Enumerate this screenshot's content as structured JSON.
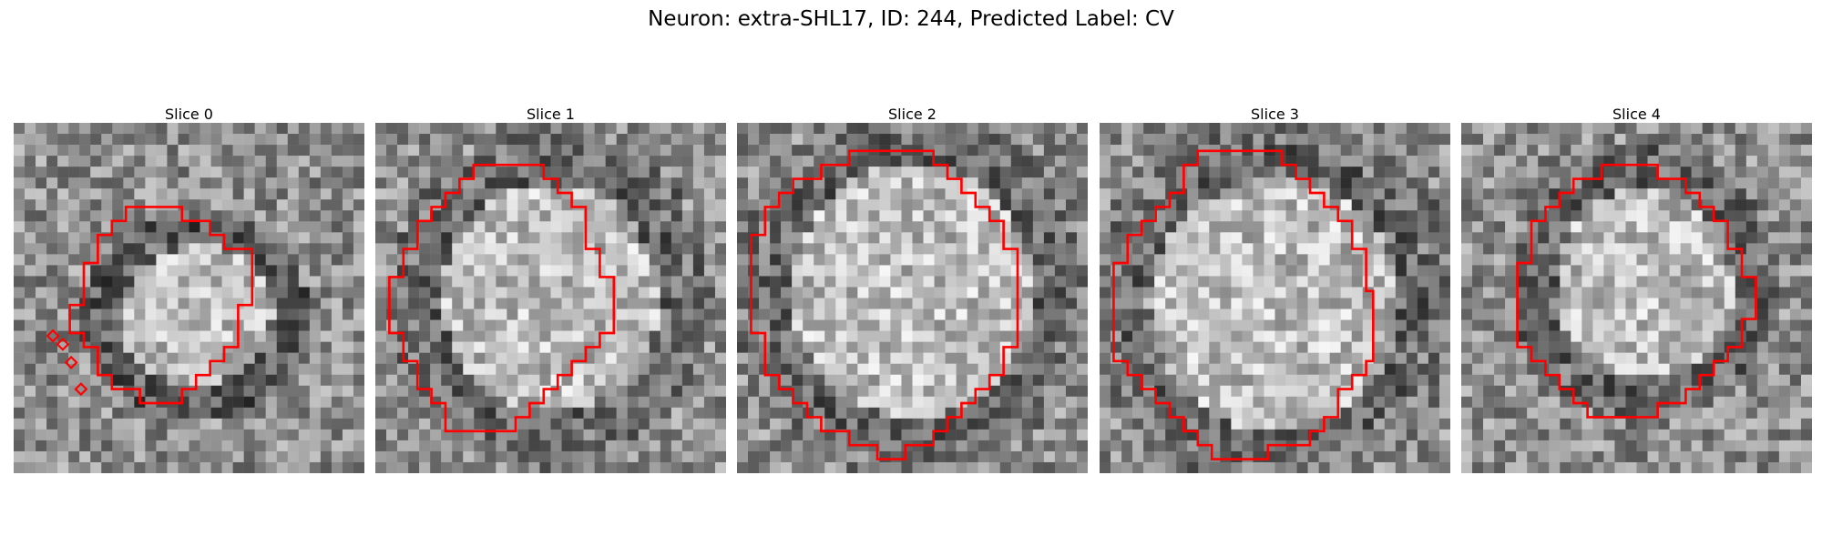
{
  "figure": {
    "title": "Neuron: extra-SHL17, ID: 244, Predicted Label: CV",
    "outline_color": "#ff0000",
    "colormap": "gray"
  },
  "panels": [
    {
      "title": "Slice 0",
      "seed": 17,
      "blob": [
        0.52,
        0.55,
        0.24,
        0.22
      ],
      "dark": 0.3,
      "outline": [
        [
          10,
          6
        ],
        [
          12,
          6
        ],
        [
          12,
          7
        ],
        [
          14,
          7
        ],
        [
          14,
          8
        ],
        [
          15,
          8
        ],
        [
          15,
          9
        ],
        [
          17,
          9
        ],
        [
          17,
          13
        ],
        [
          16,
          13
        ],
        [
          16,
          16
        ],
        [
          15,
          16
        ],
        [
          15,
          17
        ],
        [
          14,
          17
        ],
        [
          14,
          18
        ],
        [
          13,
          18
        ],
        [
          13,
          19
        ],
        [
          12,
          19
        ],
        [
          12,
          20
        ],
        [
          9,
          20
        ],
        [
          9,
          19
        ],
        [
          7,
          19
        ],
        [
          7,
          18
        ],
        [
          6,
          18
        ],
        [
          6,
          16
        ],
        [
          5,
          16
        ],
        [
          5,
          15
        ],
        [
          4,
          15
        ],
        [
          4,
          13
        ],
        [
          5,
          13
        ],
        [
          5,
          10
        ],
        [
          6,
          10
        ],
        [
          6,
          8
        ],
        [
          7,
          8
        ],
        [
          7,
          7
        ],
        [
          8,
          7
        ],
        [
          8,
          6
        ]
      ],
      "markers": [
        [
          2.8,
          15.2
        ],
        [
          3.5,
          15.8
        ],
        [
          4.1,
          17.1
        ],
        [
          4.8,
          19.0
        ]
      ]
    },
    {
      "title": "Slice 1",
      "seed": 53,
      "blob": [
        0.5,
        0.5,
        0.34,
        0.36
      ],
      "dark": 0.1,
      "outline": [
        [
          8,
          3
        ],
        [
          12,
          3
        ],
        [
          12,
          4
        ],
        [
          13,
          4
        ],
        [
          13,
          5
        ],
        [
          14,
          5
        ],
        [
          14,
          6
        ],
        [
          15,
          6
        ],
        [
          15,
          9
        ],
        [
          16,
          9
        ],
        [
          16,
          10
        ],
        [
          16,
          11
        ],
        [
          17,
          11
        ],
        [
          17,
          13
        ],
        [
          17,
          15
        ],
        [
          16,
          15
        ],
        [
          16,
          16
        ],
        [
          15,
          16
        ],
        [
          15,
          17
        ],
        [
          14,
          17
        ],
        [
          14,
          18
        ],
        [
          13,
          18
        ],
        [
          13,
          19
        ],
        [
          12,
          19
        ],
        [
          12,
          20
        ],
        [
          11,
          20
        ],
        [
          11,
          21
        ],
        [
          10,
          21
        ],
        [
          10,
          22
        ],
        [
          5,
          22
        ],
        [
          5,
          20
        ],
        [
          4,
          20
        ],
        [
          4,
          19
        ],
        [
          3,
          19
        ],
        [
          3,
          17
        ],
        [
          2,
          17
        ],
        [
          2,
          15
        ],
        [
          1,
          15
        ],
        [
          1,
          13
        ],
        [
          1,
          11
        ],
        [
          2,
          11
        ],
        [
          2,
          9
        ],
        [
          3,
          9
        ],
        [
          3,
          7
        ],
        [
          4,
          7
        ],
        [
          4,
          6
        ],
        [
          5,
          6
        ],
        [
          5,
          5
        ],
        [
          6,
          5
        ],
        [
          6,
          4
        ],
        [
          7,
          4
        ],
        [
          7,
          3
        ]
      ],
      "markers": []
    },
    {
      "title": "Slice 2",
      "seed": 91,
      "blob": [
        0.5,
        0.48,
        0.38,
        0.4
      ],
      "dark": 0.05,
      "outline": [
        [
          8,
          2
        ],
        [
          14,
          2
        ],
        [
          14,
          3
        ],
        [
          15,
          3
        ],
        [
          15,
          4
        ],
        [
          16,
          4
        ],
        [
          16,
          5
        ],
        [
          17,
          5
        ],
        [
          17,
          6
        ],
        [
          18,
          6
        ],
        [
          18,
          7
        ],
        [
          19,
          7
        ],
        [
          19,
          9
        ],
        [
          20,
          9
        ],
        [
          20,
          16
        ],
        [
          19,
          16
        ],
        [
          19,
          18
        ],
        [
          18,
          18
        ],
        [
          18,
          19
        ],
        [
          17,
          19
        ],
        [
          17,
          20
        ],
        [
          16,
          20
        ],
        [
          16,
          21
        ],
        [
          15,
          21
        ],
        [
          15,
          22
        ],
        [
          14,
          22
        ],
        [
          14,
          23
        ],
        [
          12,
          23
        ],
        [
          12,
          24
        ],
        [
          10,
          24
        ],
        [
          10,
          23
        ],
        [
          8,
          23
        ],
        [
          8,
          22
        ],
        [
          6,
          22
        ],
        [
          6,
          21
        ],
        [
          5,
          21
        ],
        [
          5,
          20
        ],
        [
          4,
          20
        ],
        [
          4,
          19
        ],
        [
          3,
          19
        ],
        [
          3,
          18
        ],
        [
          2,
          18
        ],
        [
          2,
          15
        ],
        [
          1,
          15
        ],
        [
          1,
          8
        ],
        [
          2,
          8
        ],
        [
          2,
          6
        ],
        [
          3,
          6
        ],
        [
          3,
          5
        ],
        [
          4,
          5
        ],
        [
          4,
          4
        ],
        [
          6,
          4
        ],
        [
          6,
          3
        ],
        [
          8,
          3
        ]
      ],
      "markers": []
    },
    {
      "title": "Slice 3",
      "seed": 133,
      "blob": [
        0.5,
        0.52,
        0.4,
        0.4
      ],
      "dark": 0.05,
      "outline": [
        [
          7,
          2
        ],
        [
          13,
          2
        ],
        [
          13,
          3
        ],
        [
          14,
          3
        ],
        [
          14,
          4
        ],
        [
          15,
          4
        ],
        [
          15,
          5
        ],
        [
          16,
          5
        ],
        [
          16,
          6
        ],
        [
          17,
          6
        ],
        [
          17,
          7
        ],
        [
          18,
          7
        ],
        [
          18,
          9
        ],
        [
          19,
          9
        ],
        [
          19,
          12
        ],
        [
          19.5,
          12
        ],
        [
          19.5,
          17
        ],
        [
          19,
          17
        ],
        [
          19,
          18
        ],
        [
          18,
          18
        ],
        [
          18,
          19
        ],
        [
          17,
          19
        ],
        [
          17,
          21
        ],
        [
          16,
          21
        ],
        [
          16,
          22
        ],
        [
          15,
          22
        ],
        [
          15,
          23
        ],
        [
          12,
          23
        ],
        [
          12,
          24
        ],
        [
          8,
          24
        ],
        [
          8,
          23
        ],
        [
          7,
          23
        ],
        [
          7,
          22
        ],
        [
          6,
          22
        ],
        [
          6,
          21
        ],
        [
          5,
          21
        ],
        [
          5,
          20
        ],
        [
          4,
          20
        ],
        [
          4,
          19
        ],
        [
          3,
          19
        ],
        [
          3,
          18
        ],
        [
          2,
          18
        ],
        [
          2,
          17
        ],
        [
          1,
          17
        ],
        [
          1,
          10
        ],
        [
          2,
          10
        ],
        [
          2,
          8
        ],
        [
          3,
          8
        ],
        [
          3,
          7
        ],
        [
          4,
          7
        ],
        [
          4,
          6
        ],
        [
          5,
          6
        ],
        [
          5,
          5
        ],
        [
          6,
          5
        ],
        [
          6,
          3
        ],
        [
          7,
          3
        ]
      ],
      "markers": []
    },
    {
      "title": "Slice 4",
      "seed": 171,
      "blob": [
        0.52,
        0.46,
        0.28,
        0.3
      ],
      "dark": 0.15,
      "outline": [
        [
          10,
          3
        ],
        [
          14,
          3
        ],
        [
          14,
          4
        ],
        [
          16,
          4
        ],
        [
          16,
          5
        ],
        [
          17,
          5
        ],
        [
          17,
          6
        ],
        [
          18,
          6
        ],
        [
          18,
          7
        ],
        [
          19,
          7
        ],
        [
          19,
          9
        ],
        [
          20,
          9
        ],
        [
          20,
          11
        ],
        [
          21,
          11
        ],
        [
          21,
          14
        ],
        [
          20,
          14
        ],
        [
          20,
          16
        ],
        [
          19,
          16
        ],
        [
          19,
          17
        ],
        [
          18,
          17
        ],
        [
          18,
          18
        ],
        [
          17,
          18
        ],
        [
          17,
          19
        ],
        [
          16,
          19
        ],
        [
          16,
          20
        ],
        [
          14,
          20
        ],
        [
          14,
          21
        ],
        [
          9,
          21
        ],
        [
          9,
          20
        ],
        [
          8,
          20
        ],
        [
          8,
          19
        ],
        [
          7,
          19
        ],
        [
          7,
          18
        ],
        [
          6,
          18
        ],
        [
          6,
          17
        ],
        [
          5,
          17
        ],
        [
          5,
          16
        ],
        [
          4,
          16
        ],
        [
          4,
          10
        ],
        [
          5,
          10
        ],
        [
          5,
          7
        ],
        [
          6,
          7
        ],
        [
          6,
          6
        ],
        [
          7,
          6
        ],
        [
          7,
          5
        ],
        [
          8,
          5
        ],
        [
          8,
          4
        ],
        [
          10,
          4
        ]
      ],
      "markers": []
    }
  ]
}
